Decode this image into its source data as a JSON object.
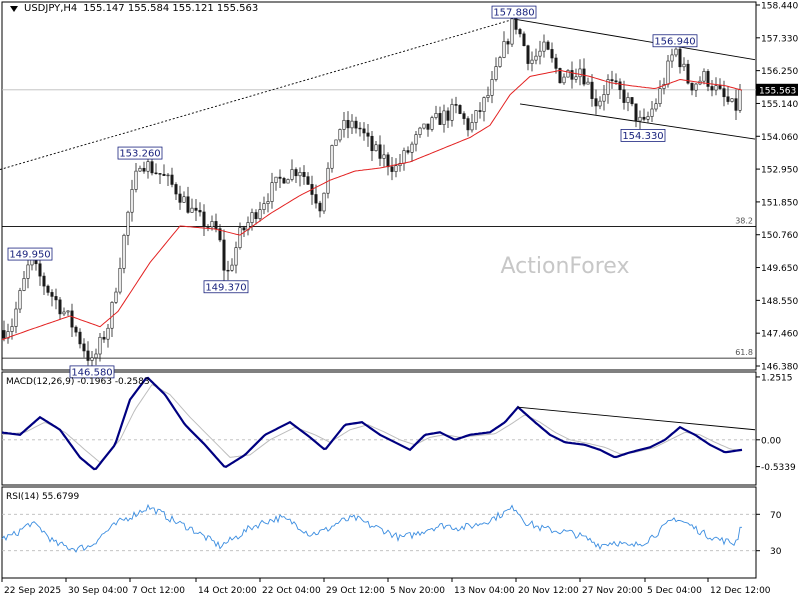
{
  "header": {
    "symbol": "USDJPY,H4",
    "ohlc": "155.147 155.584 155.121 155.563"
  },
  "watermark": "ActionForex",
  "colors": {
    "candle": "#1a1a1a",
    "ma": "#e32222",
    "macd": "#000080",
    "signal": "#bdbdbd",
    "rsi": "#3b8de0",
    "trendline": "#000000",
    "grid": "#c8c8c8",
    "watermark": "#c7c7c7"
  },
  "chart_data": [
    {
      "type": "candlestick",
      "title": "USDJPY,H4",
      "y_ticks": [
        "158.440",
        "157.330",
        "156.250",
        "155.140",
        "154.060",
        "152.950",
        "151.850",
        "150.760",
        "149.650",
        "148.550",
        "147.460",
        "146.380"
      ],
      "ylim": [
        146.38,
        158.44
      ],
      "x_ticks": [
        "22 Sep 2025",
        "30 Sep 04:00",
        "7 Oct 12:00",
        "14 Oct 20:00",
        "22 Oct 04:00",
        "29 Oct 12:00",
        "5 Nov 20:00",
        "13 Nov 04:00",
        "20 Nov 12:00",
        "27 Nov 20:00",
        "5 Dec 04:00",
        "12 Dec 12:00"
      ],
      "current_price": "155.563",
      "path_anchors": [
        [
          0,
          147.6
        ],
        [
          12,
          147.9
        ],
        [
          30,
          149.95
        ],
        [
          44,
          149.2
        ],
        [
          70,
          148.0
        ],
        [
          92,
          146.58
        ],
        [
          110,
          148.0
        ],
        [
          128,
          151.5
        ],
        [
          140,
          153.26
        ],
        [
          160,
          152.8
        ],
        [
          176,
          152.3
        ],
        [
          196,
          151.4
        ],
        [
          218,
          150.9
        ],
        [
          226,
          149.37
        ],
        [
          240,
          150.8
        ],
        [
          262,
          151.9
        ],
        [
          285,
          152.8
        ],
        [
          300,
          153.0
        ],
        [
          320,
          151.8
        ],
        [
          338,
          154.3
        ],
        [
          358,
          154.4
        ],
        [
          372,
          153.6
        ],
        [
          396,
          153.0
        ],
        [
          420,
          154.1
        ],
        [
          438,
          154.6
        ],
        [
          456,
          154.9
        ],
        [
          470,
          154.3
        ],
        [
          490,
          155.5
        ],
        [
          505,
          157.0
        ],
        [
          514,
          157.88
        ],
        [
          530,
          156.5
        ],
        [
          545,
          156.9
        ],
        [
          560,
          156.0
        ],
        [
          580,
          156.3
        ],
        [
          597,
          155.1
        ],
        [
          608,
          155.8
        ],
        [
          625,
          155.3
        ],
        [
          643,
          154.33
        ],
        [
          658,
          155.3
        ],
        [
          675,
          156.94
        ],
        [
          690,
          155.7
        ],
        [
          705,
          156.0
        ],
        [
          720,
          155.4
        ],
        [
          735,
          154.9
        ],
        [
          742,
          155.563
        ]
      ],
      "series": [
        {
          "type": "moving_average",
          "anchors": [
            [
              0,
              147.35
            ],
            [
              30,
              147.7
            ],
            [
              70,
              148.15
            ],
            [
              100,
              147.8
            ],
            [
              118,
              148.3
            ],
            [
              150,
              149.9
            ],
            [
              180,
              151.1
            ],
            [
              215,
              151.0
            ],
            [
              240,
              150.8
            ],
            [
              270,
              151.5
            ],
            [
              300,
              152.1
            ],
            [
              330,
              152.6
            ],
            [
              355,
              152.9
            ],
            [
              380,
              153.0
            ],
            [
              410,
              153.2
            ],
            [
              440,
              153.6
            ],
            [
              470,
              154.0
            ],
            [
              490,
              154.4
            ],
            [
              510,
              155.4
            ],
            [
              530,
              156.0
            ],
            [
              560,
              156.2
            ],
            [
              590,
              156.0
            ],
            [
              610,
              155.8
            ],
            [
              630,
              155.7
            ],
            [
              655,
              155.6
            ],
            [
              680,
              155.9
            ],
            [
              700,
              155.8
            ],
            [
              725,
              155.7
            ],
            [
              742,
              155.55
            ]
          ]
        }
      ],
      "annotations": [
        {
          "text": "157.880",
          "x": 514,
          "y": 157.88
        },
        {
          "text": "156.940",
          "x": 675,
          "y": 156.94
        },
        {
          "text": "154.330",
          "x": 643,
          "y": 154.33
        },
        {
          "text": "153.260",
          "x": 140,
          "y": 153.26
        },
        {
          "text": "149.370",
          "x": 226,
          "y": 149.37
        },
        {
          "text": "149.950",
          "x": 30,
          "y": 149.95
        },
        {
          "text": "146.580",
          "x": 92,
          "y": 146.58
        }
      ],
      "fib_levels": [
        {
          "label": "38.2",
          "y": 151.08
        },
        {
          "label": "61.8",
          "y": 146.77
        }
      ],
      "trendlines": [
        {
          "style": "dashed",
          "from": [
            0,
            152.95
          ],
          "to": [
            514,
            157.88
          ]
        },
        {
          "style": "solid",
          "from": [
            514,
            157.88
          ],
          "to": [
            755,
            156.55
          ]
        },
        {
          "style": "solid",
          "from": [
            520,
            155.1
          ],
          "to": [
            755,
            153.95
          ]
        }
      ]
    },
    {
      "type": "line",
      "title": "MACD(12,26,9) -0.1963 -0.2583",
      "y_ticks": [
        "1.2515",
        "0.00",
        "-0.5339"
      ],
      "ylim": [
        -0.9,
        1.35
      ],
      "series": [
        {
          "name": "MACD",
          "anchors": [
            [
              0,
              0.15
            ],
            [
              20,
              0.1
            ],
            [
              40,
              0.45
            ],
            [
              60,
              0.2
            ],
            [
              80,
              -0.35
            ],
            [
              95,
              -0.6
            ],
            [
              115,
              -0.1
            ],
            [
              130,
              0.8
            ],
            [
              147,
              1.25
            ],
            [
              165,
              0.9
            ],
            [
              185,
              0.3
            ],
            [
              205,
              -0.1
            ],
            [
              225,
              -0.55
            ],
            [
              245,
              -0.3
            ],
            [
              265,
              0.1
            ],
            [
              290,
              0.35
            ],
            [
              310,
              0.05
            ],
            [
              325,
              -0.2
            ],
            [
              345,
              0.3
            ],
            [
              362,
              0.35
            ],
            [
              380,
              0.1
            ],
            [
              395,
              -0.05
            ],
            [
              410,
              -0.2
            ],
            [
              425,
              0.1
            ],
            [
              440,
              0.15
            ],
            [
              455,
              0.0
            ],
            [
              470,
              0.1
            ],
            [
              490,
              0.15
            ],
            [
              505,
              0.35
            ],
            [
              518,
              0.65
            ],
            [
              535,
              0.35
            ],
            [
              550,
              0.1
            ],
            [
              565,
              -0.05
            ],
            [
              585,
              -0.1
            ],
            [
              600,
              -0.2
            ],
            [
              615,
              -0.35
            ],
            [
              630,
              -0.25
            ],
            [
              650,
              -0.15
            ],
            [
              665,
              0.0
            ],
            [
              680,
              0.25
            ],
            [
              695,
              0.1
            ],
            [
              710,
              -0.1
            ],
            [
              725,
              -0.25
            ],
            [
              742,
              -0.2
            ]
          ]
        },
        {
          "name": "Signal",
          "anchors": [
            [
              0,
              0.1
            ],
            [
              25,
              0.15
            ],
            [
              45,
              0.35
            ],
            [
              65,
              0.15
            ],
            [
              85,
              -0.2
            ],
            [
              100,
              -0.45
            ],
            [
              120,
              0.0
            ],
            [
              135,
              0.6
            ],
            [
              152,
              1.1
            ],
            [
              170,
              0.9
            ],
            [
              190,
              0.45
            ],
            [
              210,
              0.05
            ],
            [
              230,
              -0.35
            ],
            [
              250,
              -0.3
            ],
            [
              270,
              0.0
            ],
            [
              295,
              0.25
            ],
            [
              315,
              0.1
            ],
            [
              330,
              -0.05
            ],
            [
              350,
              0.2
            ],
            [
              368,
              0.3
            ],
            [
              385,
              0.15
            ],
            [
              400,
              0.0
            ],
            [
              415,
              -0.1
            ],
            [
              430,
              0.05
            ],
            [
              445,
              0.1
            ],
            [
              460,
              0.05
            ],
            [
              475,
              0.08
            ],
            [
              495,
              0.12
            ],
            [
              510,
              0.3
            ],
            [
              525,
              0.5
            ],
            [
              540,
              0.35
            ],
            [
              555,
              0.15
            ],
            [
              570,
              0.0
            ],
            [
              590,
              -0.08
            ],
            [
              605,
              -0.15
            ],
            [
              620,
              -0.28
            ],
            [
              635,
              -0.25
            ],
            [
              655,
              -0.15
            ],
            [
              670,
              0.0
            ],
            [
              685,
              0.15
            ],
            [
              700,
              0.1
            ],
            [
              715,
              -0.05
            ],
            [
              730,
              -0.18
            ],
            [
              742,
              -0.22
            ]
          ]
        }
      ],
      "trendlines": [
        {
          "style": "solid",
          "from": [
            518,
            0.65
          ],
          "to": [
            755,
            0.2
          ]
        }
      ]
    },
    {
      "type": "line",
      "title": "RSI(14) 55.6799",
      "y_ticks": [
        "70",
        "30"
      ],
      "ylim": [
        0,
        100
      ],
      "levels": [
        70,
        30
      ],
      "series": [
        {
          "name": "RSI",
          "anchors": [
            [
              0,
              42
            ],
            [
              15,
              48
            ],
            [
              30,
              60
            ],
            [
              40,
              55
            ],
            [
              55,
              38
            ],
            [
              75,
              32
            ],
            [
              90,
              35
            ],
            [
              105,
              50
            ],
            [
              120,
              62
            ],
            [
              135,
              70
            ],
            [
              148,
              78
            ],
            [
              160,
              72
            ],
            [
              175,
              62
            ],
            [
              190,
              55
            ],
            [
              205,
              45
            ],
            [
              220,
              35
            ],
            [
              235,
              44
            ],
            [
              250,
              55
            ],
            [
              265,
              62
            ],
            [
              280,
              66
            ],
            [
              295,
              60
            ],
            [
              310,
              48
            ],
            [
              325,
              52
            ],
            [
              340,
              62
            ],
            [
              355,
              66
            ],
            [
              370,
              58
            ],
            [
              385,
              52
            ],
            [
              400,
              44
            ],
            [
              415,
              48
            ],
            [
              430,
              55
            ],
            [
              445,
              58
            ],
            [
              460,
              55
            ],
            [
              475,
              58
            ],
            [
              490,
              64
            ],
            [
              505,
              72
            ],
            [
              515,
              78
            ],
            [
              525,
              62
            ],
            [
              540,
              55
            ],
            [
              555,
              52
            ],
            [
              570,
              50
            ],
            [
              585,
              44
            ],
            [
              600,
              36
            ],
            [
              615,
              40
            ],
            [
              630,
              34
            ],
            [
              645,
              40
            ],
            [
              660,
              52
            ],
            [
              675,
              66
            ],
            [
              690,
              58
            ],
            [
              705,
              48
            ],
            [
              720,
              42
            ],
            [
              735,
              38
            ],
            [
              742,
              55.7
            ]
          ]
        }
      ]
    }
  ]
}
